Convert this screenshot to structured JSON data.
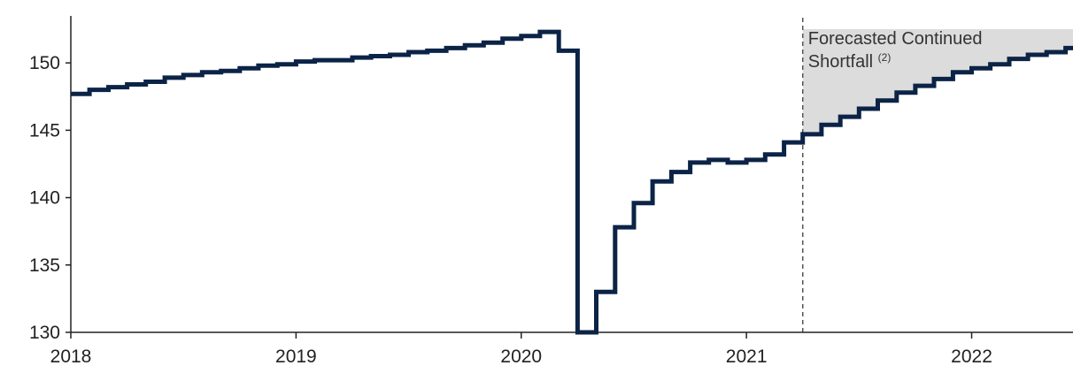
{
  "chart_data": {
    "type": "line",
    "step": true,
    "title": "",
    "xlabel": "",
    "ylabel": "",
    "xlim": [
      2018.0,
      2022.45
    ],
    "ylim": [
      130,
      152.7
    ],
    "x_ticks": [
      {
        "value": 2018,
        "label": "2018"
      },
      {
        "value": 2019,
        "label": "2019"
      },
      {
        "value": 2020,
        "label": "2020"
      },
      {
        "value": 2021,
        "label": "2021"
      },
      {
        "value": 2022,
        "label": "2022"
      }
    ],
    "y_ticks": [
      {
        "value": 130,
        "label": "130"
      },
      {
        "value": 135,
        "label": "135"
      },
      {
        "value": 140,
        "label": "140"
      },
      {
        "value": 145,
        "label": "145"
      },
      {
        "value": 150,
        "label": "150"
      }
    ],
    "series": [
      {
        "color": "#0b2346",
        "points": [
          [
            2018.0,
            147.7
          ],
          [
            2018.083,
            148.0
          ],
          [
            2018.167,
            148.2
          ],
          [
            2018.25,
            148.4
          ],
          [
            2018.333,
            148.6
          ],
          [
            2018.417,
            148.9
          ],
          [
            2018.5,
            149.1
          ],
          [
            2018.583,
            149.3
          ],
          [
            2018.667,
            149.4
          ],
          [
            2018.75,
            149.6
          ],
          [
            2018.833,
            149.8
          ],
          [
            2018.917,
            149.9
          ],
          [
            2019.0,
            150.1
          ],
          [
            2019.083,
            150.2
          ],
          [
            2019.167,
            150.2
          ],
          [
            2019.25,
            150.4
          ],
          [
            2019.333,
            150.5
          ],
          [
            2019.417,
            150.6
          ],
          [
            2019.5,
            150.8
          ],
          [
            2019.583,
            150.9
          ],
          [
            2019.667,
            151.1
          ],
          [
            2019.75,
            151.3
          ],
          [
            2019.833,
            151.5
          ],
          [
            2019.917,
            151.8
          ],
          [
            2020.0,
            152.0
          ],
          [
            2020.083,
            152.3
          ],
          [
            2020.167,
            150.9
          ],
          [
            2020.25,
            130.0
          ],
          [
            2020.333,
            133.0
          ],
          [
            2020.417,
            137.8
          ],
          [
            2020.5,
            139.6
          ],
          [
            2020.583,
            141.2
          ],
          [
            2020.667,
            141.9
          ],
          [
            2020.75,
            142.6
          ],
          [
            2020.833,
            142.8
          ],
          [
            2020.917,
            142.6
          ],
          [
            2021.0,
            142.8
          ],
          [
            2021.083,
            143.2
          ],
          [
            2021.167,
            144.1
          ],
          [
            2021.25,
            144.7
          ],
          [
            2021.333,
            145.4
          ],
          [
            2021.417,
            146.0
          ],
          [
            2021.5,
            146.6
          ],
          [
            2021.583,
            147.2
          ],
          [
            2021.667,
            147.8
          ],
          [
            2021.75,
            148.3
          ],
          [
            2021.833,
            148.8
          ],
          [
            2021.917,
            149.3
          ],
          [
            2022.0,
            149.6
          ],
          [
            2022.083,
            149.9
          ],
          [
            2022.167,
            150.3
          ],
          [
            2022.25,
            150.6
          ],
          [
            2022.333,
            150.8
          ],
          [
            2022.417,
            151.1
          ]
        ]
      }
    ],
    "forecast": {
      "start": 2021.25,
      "shade_top": 152.5,
      "label_line1": "Forecasted Continued",
      "label_line2": "Shortfall",
      "label_sup": "(2)"
    },
    "grid": false,
    "colors": {
      "line": "#0b2346",
      "shade": "#dcdcdc",
      "axis": "#222222",
      "divider": "#555555"
    }
  }
}
